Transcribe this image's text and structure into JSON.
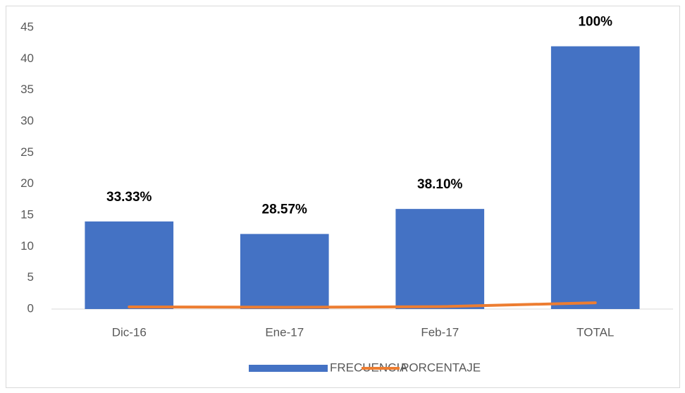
{
  "chart_data": {
    "type": "bar",
    "categories": [
      "Dic-16",
      "Ene-17",
      "Feb-17",
      "TOTAL"
    ],
    "series": [
      {
        "name": "FRECUENCIA",
        "type": "bar",
        "color": "#4472c4",
        "values": [
          14,
          12,
          16,
          42
        ]
      },
      {
        "name": "PORCENTAJE",
        "type": "line",
        "color": "#ed7d31",
        "values": [
          0.3333,
          0.2857,
          0.381,
          1
        ],
        "value_labels": [
          "33.33%",
          "28.57%",
          "38.10%",
          "100%"
        ]
      }
    ],
    "ylim": [
      0,
      45
    ],
    "yticks": [
      0,
      5,
      10,
      15,
      20,
      25,
      30,
      35,
      40,
      45
    ],
    "grid": false,
    "legend": "bottom"
  }
}
